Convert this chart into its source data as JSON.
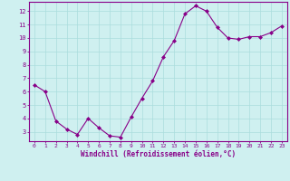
{
  "x": [
    0,
    1,
    2,
    3,
    4,
    5,
    6,
    7,
    8,
    9,
    10,
    11,
    12,
    13,
    14,
    15,
    16,
    17,
    18,
    19,
    20,
    21,
    22,
    23
  ],
  "y": [
    6.5,
    6.0,
    3.8,
    3.2,
    2.8,
    4.0,
    3.3,
    2.7,
    2.6,
    4.1,
    5.5,
    6.8,
    8.6,
    9.8,
    11.8,
    12.4,
    12.0,
    10.8,
    10.0,
    9.9,
    10.1,
    10.1,
    10.4,
    10.9
  ],
  "line_color": "#880088",
  "marker_color": "#880088",
  "bg_color": "#cff0f0",
  "grid_color": "#aadddd",
  "axis_color": "#880088",
  "tick_color": "#880088",
  "xlabel": "Windchill (Refroidissement éolien,°C)",
  "xlim": [
    -0.5,
    23.5
  ],
  "ylim": [
    2.3,
    12.7
  ],
  "yticks": [
    3,
    4,
    5,
    6,
    7,
    8,
    9,
    10,
    11,
    12
  ],
  "xticks": [
    0,
    1,
    2,
    3,
    4,
    5,
    6,
    7,
    8,
    9,
    10,
    11,
    12,
    13,
    14,
    15,
    16,
    17,
    18,
    19,
    20,
    21,
    22,
    23
  ]
}
